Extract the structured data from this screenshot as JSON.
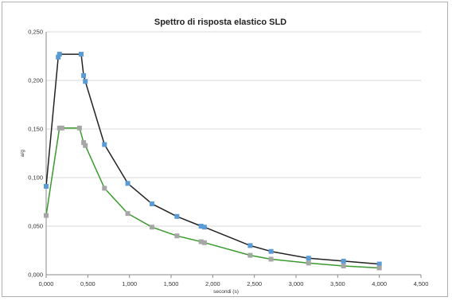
{
  "chart_data": {
    "type": "line",
    "title": "Spettro di risposta elastico SLD",
    "xlabel": "secondi (s)",
    "ylabel": "a/g",
    "xlim": [
      0,
      4.5
    ],
    "ylim": [
      0,
      0.25
    ],
    "x_ticks": [
      "0,000",
      "0,500",
      "1,000",
      "1,500",
      "2,000",
      "2,500",
      "3,000",
      "3,500",
      "4,000",
      "4,500"
    ],
    "y_ticks": [
      "0,000",
      "0,050",
      "0,100",
      "0,150",
      "0,200",
      "0,250"
    ],
    "grid": "horizontal",
    "legend": "none",
    "series": [
      {
        "color": "#222222",
        "marker_color": "#5b9bd5",
        "points": [
          [
            0.0,
            0.091
          ],
          [
            0.145,
            0.224
          ],
          [
            0.16,
            0.227
          ],
          [
            0.42,
            0.227
          ],
          [
            0.45,
            0.205
          ],
          [
            0.47,
            0.199
          ],
          [
            0.7,
            0.134
          ],
          [
            0.98,
            0.094
          ],
          [
            1.27,
            0.073
          ],
          [
            1.57,
            0.06
          ],
          [
            1.86,
            0.05
          ],
          [
            1.9,
            0.049
          ],
          [
            2.45,
            0.03
          ],
          [
            2.7,
            0.024
          ],
          [
            3.15,
            0.017
          ],
          [
            3.57,
            0.014
          ],
          [
            4.0,
            0.011
          ]
        ]
      },
      {
        "color": "#3a9a2e",
        "marker_color": "#a6a6a6",
        "points": [
          [
            0.0,
            0.061
          ],
          [
            0.16,
            0.151
          ],
          [
            0.19,
            0.151
          ],
          [
            0.4,
            0.151
          ],
          [
            0.45,
            0.136
          ],
          [
            0.47,
            0.133
          ],
          [
            0.7,
            0.089
          ],
          [
            0.98,
            0.063
          ],
          [
            1.27,
            0.049
          ],
          [
            1.57,
            0.04
          ],
          [
            1.86,
            0.034
          ],
          [
            1.9,
            0.033
          ],
          [
            2.45,
            0.02
          ],
          [
            2.7,
            0.016
          ],
          [
            3.15,
            0.012
          ],
          [
            3.57,
            0.009
          ],
          [
            4.0,
            0.007
          ]
        ]
      }
    ]
  }
}
